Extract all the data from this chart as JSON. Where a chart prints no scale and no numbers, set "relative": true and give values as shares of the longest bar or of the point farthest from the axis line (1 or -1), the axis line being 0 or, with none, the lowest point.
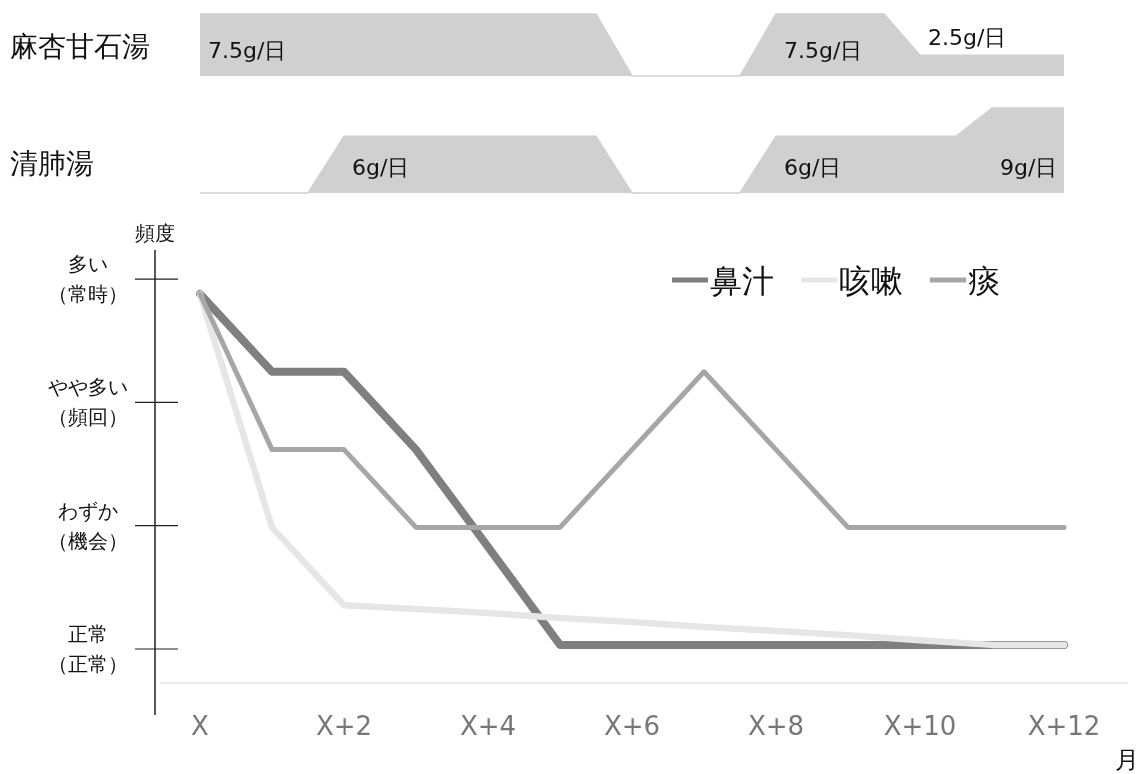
{
  "chart_data": [
    {
      "type": "area",
      "title": "麻杏甘石湯",
      "categories": [
        null,
        null,
        null,
        null,
        null,
        null,
        null,
        null,
        null,
        null,
        null,
        null,
        null,
        null,
        null,
        null,
        null,
        null,
        null,
        null,
        null,
        null,
        null,
        null,
        null
      ],
      "color": "#d0d0d0",
      "values": [
        7.5,
        7.5,
        7.5,
        7.5,
        7.5,
        7.5,
        7.5,
        7.5,
        7.5,
        7.5,
        7.5,
        7.5,
        0,
        0,
        0,
        0,
        7.5,
        7.5,
        7.5,
        7.5,
        2.5,
        2.5,
        2.5,
        2.5,
        2.5
      ],
      "value_labels": [
        "7.5g/日",
        null,
        null,
        null,
        null,
        null,
        null,
        null,
        null,
        null,
        null,
        null,
        null,
        null,
        null,
        null,
        "7.5g/日",
        null,
        null,
        null,
        "2.5g/日",
        null,
        null,
        null,
        null
      ]
    },
    {
      "type": "area",
      "title": "清肺湯",
      "categories": [
        null,
        null,
        null,
        null,
        null,
        null,
        null,
        null,
        null,
        null,
        null,
        null,
        null,
        null,
        null,
        null,
        null,
        null,
        null,
        null,
        null,
        null,
        null,
        null,
        null
      ],
      "color": "#d0d0d0",
      "values": [
        0,
        0,
        0,
        0,
        6,
        6,
        6,
        6,
        6,
        6,
        6,
        6,
        0,
        0,
        0,
        0,
        6,
        6,
        6,
        6,
        6,
        6,
        9,
        9,
        9
      ],
      "value_labels": [
        null,
        null,
        null,
        null,
        "6g/日",
        null,
        null,
        null,
        null,
        null,
        null,
        null,
        null,
        null,
        null,
        null,
        "6g/日",
        null,
        null,
        null,
        null,
        null,
        "9g/日",
        null,
        null
      ]
    },
    {
      "type": "line",
      "relative": true,
      "ylabel": "頻度",
      "xlabel": "月",
      "categories": [
        "X",
        null,
        "X+2",
        null,
        "X+4",
        null,
        "X+6",
        null,
        "X+8",
        null,
        "X+10",
        null,
        "X+12"
      ],
      "annotations": [
        "正常（正常）",
        "わずか（機会）",
        "やや多い（頻回）",
        "多い（常時）"
      ],
      "legend": "top right",
      "series": [
        {
          "name": "鼻汁",
          "color": "#7f7f7f",
          "values": [
            1,
            0.8,
            0.8,
            0.6,
            0.35,
            0.098,
            0.098,
            0.098,
            0.098,
            0.098,
            0.098,
            0.098,
            0.098
          ]
        },
        {
          "name": "咳嗽",
          "color": "#e6e6e6",
          "values": [
            1,
            0.4,
            0.2,
            0.19,
            0.18,
            0.167,
            0.157,
            0.144,
            0.134,
            0.123,
            0.11,
            0.098,
            0.098
          ]
        },
        {
          "name": "痰",
          "color": "#a6a6a6",
          "values": [
            1,
            0.6,
            0.6,
            0.4,
            0.4,
            0.4,
            0.6,
            0.8,
            0.6,
            0.4,
            0.4,
            0.4,
            0.4
          ]
        }
      ]
    }
  ]
}
